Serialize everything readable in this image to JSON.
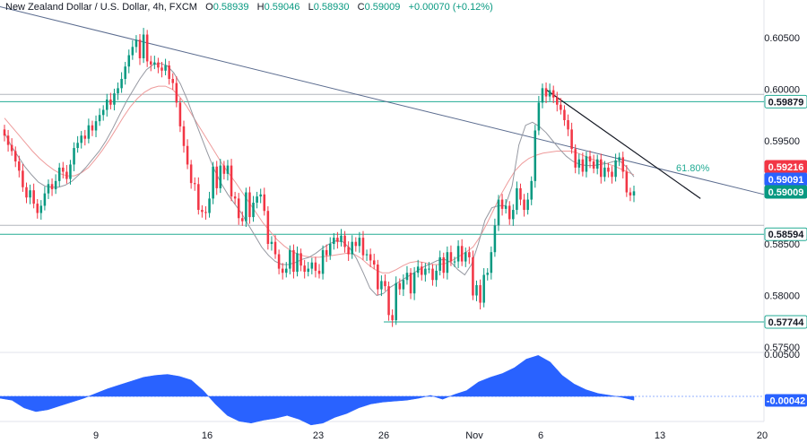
{
  "header": {
    "symbol": "New Zealand Dollar / U.S. Dollar, 4h, FXCM",
    "o_label": "O",
    "o_value": "0.58939",
    "h_label": "H",
    "h_value": "0.59046",
    "l_label": "L",
    "l_value": "0.58930",
    "c_label": "C",
    "c_value": "0.59009",
    "change": "+0.00070 (+0.12%)"
  },
  "chart_data": [
    {
      "type": "candlestick",
      "title": "New Zealand Dollar / U.S. Dollar, 4h, FXCM",
      "x_tick_labels": [
        "9",
        "16",
        "23",
        "26",
        "Nov",
        "6",
        "13",
        "20"
      ],
      "y_tick_labels": [
        "0.60500",
        "0.60000",
        "0.59500",
        "0.58500",
        "0.58000",
        "0.57500"
      ],
      "ylim": [
        0.574,
        0.6078
      ],
      "candles_close": [
        0.5955,
        0.5946,
        0.594,
        0.593,
        0.5921,
        0.5905,
        0.5895,
        0.5902,
        0.5889,
        0.588,
        0.5887,
        0.5899,
        0.5908,
        0.5903,
        0.5911,
        0.5924,
        0.592,
        0.5913,
        0.5927,
        0.5943,
        0.5948,
        0.5955,
        0.5952,
        0.5965,
        0.596,
        0.5969,
        0.5975,
        0.598,
        0.599,
        0.5985,
        0.5996,
        0.6001,
        0.601,
        0.6022,
        0.6033,
        0.6041,
        0.6048,
        0.603,
        0.6053,
        0.6027,
        0.6024,
        0.6026,
        0.6021,
        0.6018,
        0.6023,
        0.601,
        0.6006,
        0.5987,
        0.5964,
        0.5945,
        0.5927,
        0.5909,
        0.5908,
        0.5883,
        0.5881,
        0.588,
        0.5894,
        0.5925,
        0.5904,
        0.5926,
        0.5918,
        0.5926,
        0.5896,
        0.5894,
        0.5875,
        0.5872,
        0.59,
        0.5876,
        0.589,
        0.5896,
        0.5898,
        0.5882,
        0.585,
        0.5852,
        0.584,
        0.5826,
        0.5822,
        0.5826,
        0.5844,
        0.5823,
        0.5841,
        0.5829,
        0.5823,
        0.5826,
        0.5832,
        0.5824,
        0.5821,
        0.5844,
        0.5839,
        0.585,
        0.5856,
        0.5852,
        0.5858,
        0.5847,
        0.584,
        0.5852,
        0.5848,
        0.5856,
        0.5839,
        0.584,
        0.5834,
        0.583,
        0.5806,
        0.5814,
        0.5809,
        0.5781,
        0.5776,
        0.5812,
        0.5806,
        0.5815,
        0.5822,
        0.5802,
        0.5822,
        0.5828,
        0.582,
        0.5826,
        0.5826,
        0.5815,
        0.5824,
        0.5837,
        0.5822,
        0.5842,
        0.5833,
        0.5833,
        0.5848,
        0.5833,
        0.5842,
        0.5837,
        0.58,
        0.581,
        0.5793,
        0.582,
        0.5822,
        0.5842,
        0.5868,
        0.5893,
        0.5884,
        0.5887,
        0.5874,
        0.5883,
        0.5904,
        0.5893,
        0.5883,
        0.5893,
        0.5911,
        0.596,
        0.5987,
        0.6001,
        0.5993,
        0.5999,
        0.5992,
        0.5985,
        0.598,
        0.597,
        0.5961,
        0.5942,
        0.5924,
        0.5932,
        0.592,
        0.5935,
        0.593,
        0.5923,
        0.5932,
        0.5915,
        0.5924,
        0.592,
        0.5915,
        0.5931,
        0.5934,
        0.592,
        0.59,
        0.5897,
        0.5901
      ],
      "ma_fast": [
        0.5958,
        0.5945,
        0.5935,
        0.5925,
        0.5917,
        0.591,
        0.5906,
        0.5905,
        0.5905,
        0.5907,
        0.5911,
        0.5917,
        0.5924,
        0.5932,
        0.594,
        0.595,
        0.5962,
        0.5975,
        0.5988,
        0.5999,
        0.601,
        0.6019,
        0.6024,
        0.6025,
        0.6023,
        0.6016,
        0.6005,
        0.599,
        0.5972,
        0.5955,
        0.5938,
        0.5922,
        0.5909,
        0.5898,
        0.5889,
        0.588,
        0.5869,
        0.5858,
        0.5847,
        0.5839,
        0.5833,
        0.583,
        0.583,
        0.5832,
        0.5835,
        0.5837,
        0.5841,
        0.5846,
        0.585,
        0.5853,
        0.5852,
        0.5846,
        0.5836,
        0.5822,
        0.5807,
        0.58,
        0.5802,
        0.5808,
        0.5812,
        0.5816,
        0.582,
        0.5824,
        0.5828,
        0.5831,
        0.5834,
        0.5835,
        0.5832,
        0.5825,
        0.582,
        0.583,
        0.585,
        0.5873,
        0.5885,
        0.5887,
        0.5887,
        0.5906,
        0.5946,
        0.5965,
        0.5968,
        0.5964,
        0.5958,
        0.595,
        0.5942,
        0.5935,
        0.593,
        0.5927,
        0.5926,
        0.5926,
        0.5927,
        0.5928,
        0.593,
        0.593,
        0.5924,
        0.5915
      ],
      "ma_slow": [
        0.5972,
        0.5964,
        0.5956,
        0.5948,
        0.594,
        0.5933,
        0.5927,
        0.5922,
        0.5918,
        0.5916,
        0.5916,
        0.5919,
        0.5924,
        0.5932,
        0.5941,
        0.5951,
        0.5962,
        0.5973,
        0.5983,
        0.5991,
        0.5997,
        0.6001,
        0.6003,
        0.6003,
        0.6,
        0.5993,
        0.5984,
        0.5973,
        0.5962,
        0.5951,
        0.594,
        0.5929,
        0.5919,
        0.591,
        0.59,
        0.589,
        0.588,
        0.587,
        0.5862,
        0.5854,
        0.5848,
        0.5843,
        0.584,
        0.5838,
        0.5837,
        0.5837,
        0.5838,
        0.5839,
        0.584,
        0.5841,
        0.584,
        0.5836,
        0.583,
        0.5825,
        0.5822,
        0.5822,
        0.5825,
        0.5829,
        0.5832,
        0.5833,
        0.5832,
        0.583,
        0.583,
        0.5831,
        0.5834,
        0.5838,
        0.5842,
        0.5847,
        0.5857,
        0.587,
        0.5884,
        0.5898,
        0.591,
        0.5921,
        0.5928,
        0.5933,
        0.5936,
        0.5938,
        0.5939,
        0.594,
        0.594,
        0.594,
        0.5938,
        0.5935,
        0.5932,
        0.593,
        0.5928,
        0.5926,
        0.5923,
        0.592,
        0.5917
      ],
      "horizontal_levels": [
        0.59879,
        0.58594,
        0.57744,
        0.5995,
        0.5868
      ],
      "trendline_long": {
        "from": [
          0,
          0.608
        ],
        "to": [
          1,
          0.5898
        ]
      },
      "trendline_short": {
        "from": [
          0.676,
          0.6
        ],
        "to": [
          0.868,
          0.5894
        ]
      },
      "fib_label": "61.80%",
      "price_tags": [
        {
          "label": "0.59879",
          "value": 0.59879,
          "color": "#22ab94",
          "filled": false
        },
        {
          "label": "0.59216",
          "value": 0.59216,
          "color": "#f23645",
          "filled": true
        },
        {
          "label": "0.59091",
          "value": 0.59091,
          "color": "#2962ff",
          "filled": true
        },
        {
          "label": "0.59009",
          "value": 0.59009,
          "color": "#089981",
          "filled": true
        },
        {
          "label": "0.58594",
          "value": 0.58594,
          "color": "#22ab94",
          "filled": false
        },
        {
          "label": "0.57744",
          "value": 0.57744,
          "color": "#22ab94",
          "filled": false
        }
      ]
    },
    {
      "type": "area",
      "x_tick_labels": [
        "9",
        "16",
        "23",
        "26",
        "Nov",
        "6",
        "13",
        "20"
      ],
      "y_tick_labels": [
        "0.00500",
        "-0.00042"
      ],
      "ylim": [
        -0.006,
        0.0055
      ],
      "values": [
        -0.0002,
        -0.0004,
        -0.0012,
        -0.0016,
        -0.0014,
        -0.001,
        -0.0006,
        -0.0002,
        0.0003,
        0.0008,
        0.0012,
        0.0016,
        0.002,
        0.0022,
        0.0023,
        0.0021,
        0.0017,
        0.0006,
        -0.0008,
        -0.002,
        -0.0026,
        -0.0028,
        -0.0025,
        -0.0023,
        -0.002,
        -0.0024,
        -0.003,
        -0.0028,
        -0.0022,
        -0.0018,
        -0.0012,
        -0.0008,
        -0.0006,
        -0.0005,
        -0.0004,
        -0.0002,
        0.0001,
        -0.0003,
        0.0002,
        0.0006,
        0.0015,
        0.002,
        0.0024,
        0.003,
        0.0039,
        0.0043,
        0.0036,
        0.0022,
        0.0013,
        0.0007,
        0.0003,
        0.0001,
        -0.0001,
        -0.0004
      ],
      "last_value_label": "-0.00042",
      "color": "#2962ff"
    }
  ],
  "colors": {
    "up": "#089981",
    "down": "#f23645",
    "ma_fast": "#9598a1",
    "ma_slow": "#ee9b9b",
    "level": "#22ab94",
    "trend_long": "#5b6c8f",
    "trend_short": "#131722",
    "oscillator": "#2962ff"
  }
}
